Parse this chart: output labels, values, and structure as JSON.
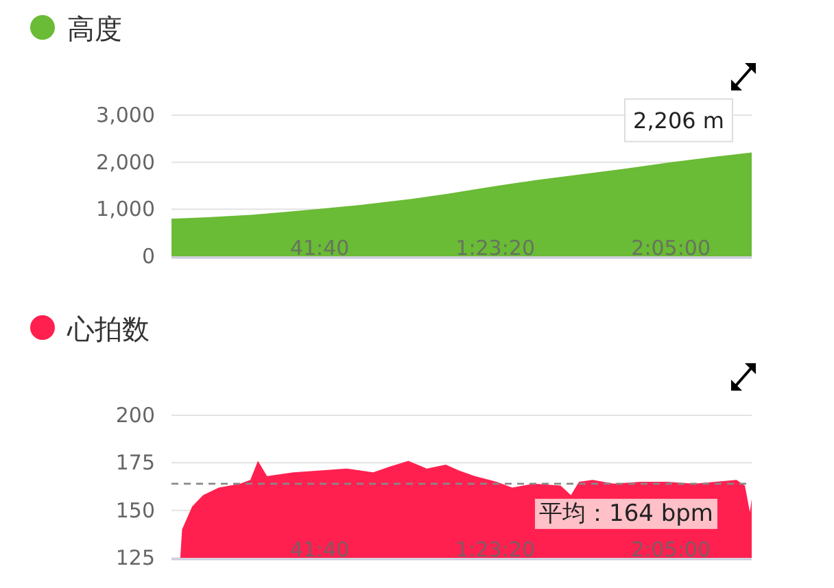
{
  "chart_data": [
    {
      "type": "area",
      "title": "高度",
      "xlim": [
        6.48,
        144.18
      ],
      "ylim": [
        0,
        3000
      ],
      "xticks": [
        {
          "value": 41.667,
          "label": "41:40"
        },
        {
          "value": 83.333,
          "label": "1:23:20"
        },
        {
          "value": 125,
          "label": "2:05:00"
        }
      ],
      "yticks": [
        0,
        {
          "value": 1000,
          "label": "1,000"
        },
        {
          "value": 2000,
          "label": "2,000"
        },
        {
          "value": 3000,
          "label": "3,000"
        }
      ],
      "grid": "y",
      "series": [
        {
          "color": "#6abb35",
          "x": [
            6.48,
            15,
            25.38,
            33,
            41.64,
            51,
            63.48,
            72,
            82.32,
            93,
            102.54,
            114,
            124.98,
            135,
            144.18
          ],
          "values": [
            800,
            830,
            880,
            940,
            1010,
            1090,
            1220,
            1330,
            1480,
            1620,
            1730,
            1860,
            2000,
            2110,
            2206
          ]
        }
      ],
      "annotations": [
        {
          "text": "2,206 m",
          "x": 144.18,
          "y": 2206
        }
      ]
    },
    {
      "type": "area",
      "title": "心拍数",
      "xlim": [
        6.48,
        144.18
      ],
      "ylim": [
        125,
        200
      ],
      "xticks": [
        {
          "value": 41.667,
          "label": "41:40"
        },
        {
          "value": 83.333,
          "label": "1:23:20"
        },
        {
          "value": 125,
          "label": "2:05:00"
        }
      ],
      "yticks": [
        125,
        150,
        175,
        200
      ],
      "grid": "y",
      "series": [
        {
          "color": "#ff2050",
          "x": [
            8.58,
            9,
            11.4,
            13.98,
            17.7,
            22.8,
            25.2,
            27,
            29.16,
            35.4,
            41.82,
            48,
            54.36,
            58.2,
            62.7,
            67.08,
            71.58,
            74.7,
            78.48,
            83.64,
            87.36,
            92.4,
            98.82,
            101.28,
            103.2,
            106.44,
            111.48,
            117.84,
            124.02,
            130.5,
            140.58,
            142.56,
            143.76,
            144.18
          ],
          "values": [
            125,
            140,
            152,
            158,
            162,
            164,
            166,
            176,
            168,
            170,
            171,
            172,
            170,
            173,
            176,
            172,
            174,
            171,
            168,
            165,
            162,
            164,
            163,
            158,
            165,
            166,
            164,
            165,
            165,
            164,
            166,
            163,
            149,
            156
          ]
        }
      ],
      "ref_lines": [
        {
          "axis": "y",
          "value": 164,
          "label": "平均：164 bpm",
          "color": "#888888",
          "line_style": "dashed"
        }
      ]
    }
  ]
}
